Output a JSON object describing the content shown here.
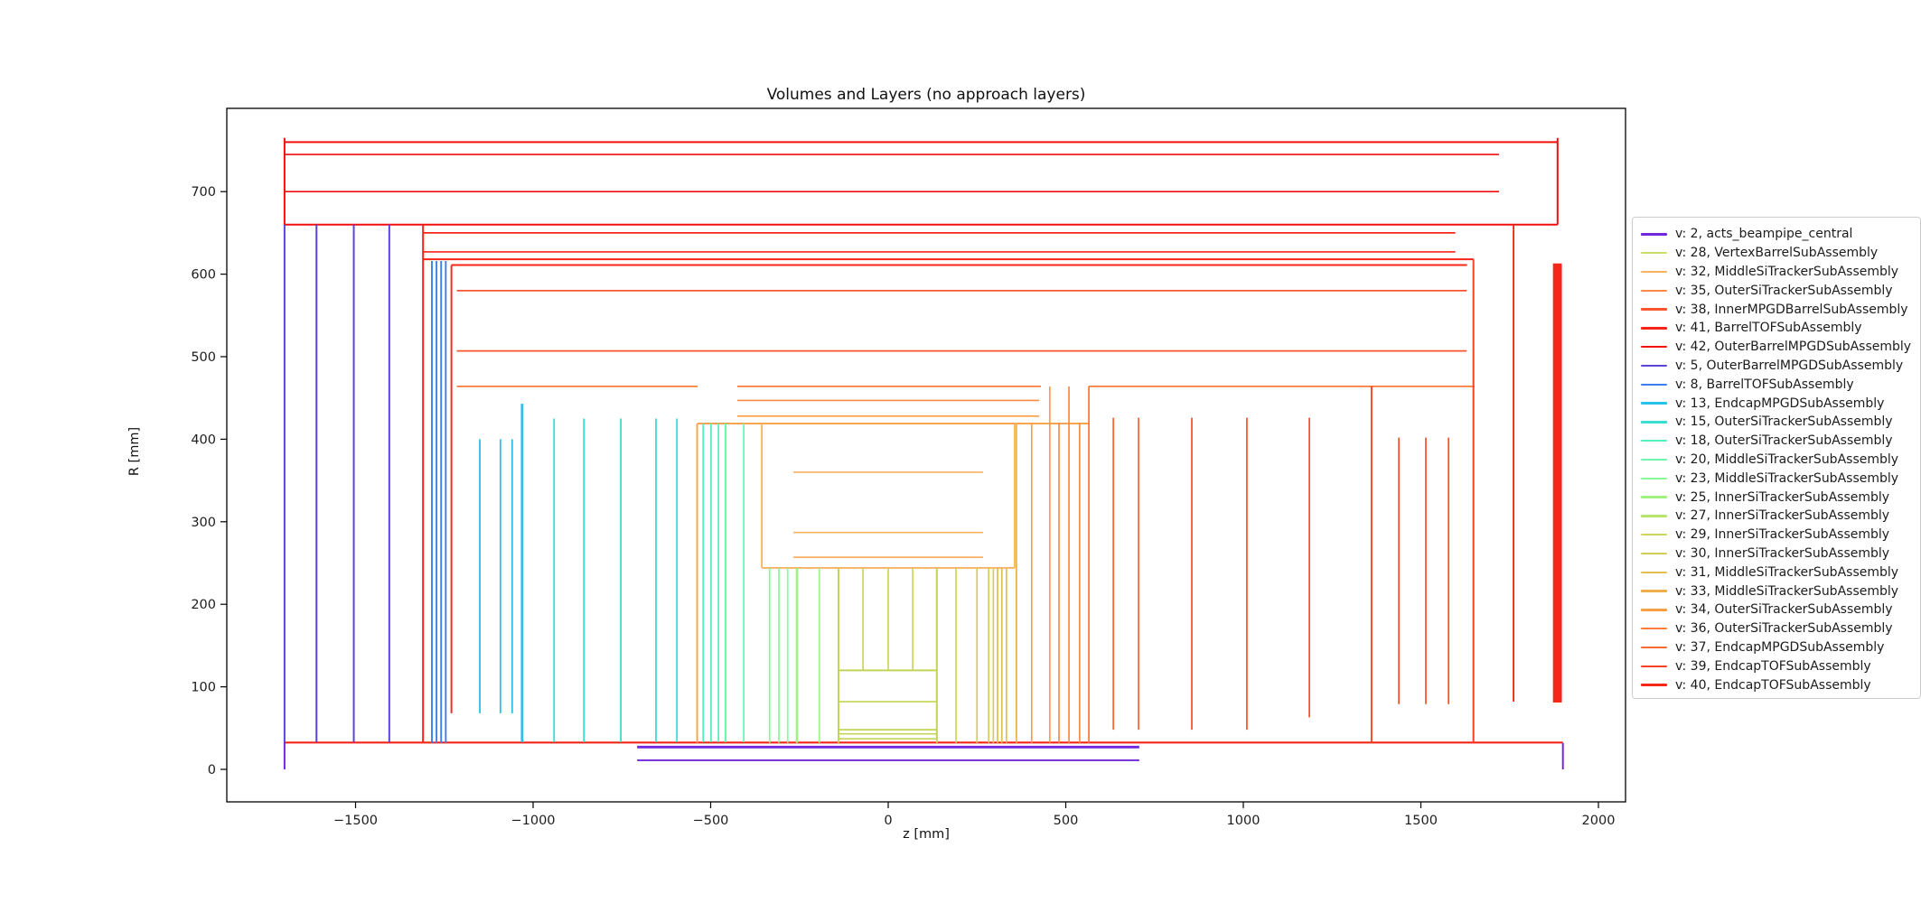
{
  "figure": {
    "title": "Volumes and Layers (no approach layers)",
    "xlabel": "z [mm]",
    "ylabel": "R [mm]",
    "background": "#ffffff",
    "spine_color": "#000000",
    "tick_label_color": "#1c1c1c"
  },
  "chart_data": {
    "type": "line",
    "description": "Detector tracker geometry cross-section: volume boundaries and layers drawn as horizontal (barrel) and vertical (disk) line segments in z-R plane",
    "title": "Volumes and Layers (no approach layers)",
    "xlabel": "z [mm]",
    "ylabel": "R [mm]",
    "xlim": [
      -1862,
      2076
    ],
    "ylim": [
      -40,
      801
    ],
    "x_ticks": [
      -1500,
      -1000,
      -500,
      0,
      500,
      1000,
      1500,
      2000
    ],
    "x_tick_labels": [
      "−1500",
      "−1000",
      "−500",
      "0",
      "500",
      "1000",
      "1500",
      "2000"
    ],
    "y_ticks": [
      0,
      100,
      200,
      300,
      400,
      500,
      600,
      700
    ],
    "y_tick_labels": [
      "0",
      "100",
      "200",
      "300",
      "400",
      "500",
      "600",
      "700"
    ],
    "grid": false,
    "legend_position": "right, outside axes, vertically centered, clipped by image edge",
    "h_segments": [
      {
        "name": "outer-mpgd-top",
        "r": 760,
        "z1": -1700,
        "z2": 1885,
        "color": "#f20f0e",
        "w": 2.0
      },
      {
        "name": "outer-mpgd-layer2",
        "r": 745,
        "z1": -1700,
        "z2": 1720,
        "color": "#f20f0e",
        "w": 1.7
      },
      {
        "name": "outer-mpgd-layer1",
        "r": 700,
        "z1": -1700,
        "z2": 1720,
        "color": "#f20f0e",
        "w": 1.7
      },
      {
        "name": "outer-mpgd-bottom",
        "r": 660,
        "z1": -1700,
        "z2": 1885,
        "color": "#f20f0e",
        "w": 2.0
      },
      {
        "name": "barrel-tof-top",
        "r": 650,
        "z1": -1310,
        "z2": 1597,
        "color": "#f7241a",
        "w": 1.7
      },
      {
        "name": "barrel-tof-layer",
        "r": 627,
        "z1": -1310,
        "z2": 1597,
        "color": "#f7241a",
        "w": 1.7
      },
      {
        "name": "barrel-tof-inner",
        "r": 618,
        "z1": -1310,
        "z2": 1648,
        "color": "#f7241a",
        "w": 2.0
      },
      {
        "name": "barrel-tof-bottom",
        "r": 611,
        "z1": -1230,
        "z2": 1630,
        "color": "#f7241a",
        "w": 2.0
      },
      {
        "name": "inner-mpgd-layer",
        "r": 580,
        "z1": -1215,
        "z2": 1629,
        "color": "#fb5530",
        "w": 1.7
      },
      {
        "name": "inner-mpgd-layer2",
        "r": 507,
        "z1": -1215,
        "z2": 1629,
        "color": "#fb5530",
        "w": 1.7
      },
      {
        "name": "outer-si-top-a",
        "r": 464,
        "z1": -1215,
        "z2": -537,
        "color": "#fb7b3b",
        "w": 1.7
      },
      {
        "name": "outer-si-top-b",
        "r": 464,
        "z1": -425,
        "z2": 430,
        "color": "#fb7b3b",
        "w": 1.7
      },
      {
        "name": "outer-si-top-c",
        "r": 464,
        "z1": 565,
        "z2": 1651,
        "color": "#fb7b3b",
        "w": 1.7
      },
      {
        "name": "outer-si-layer",
        "r": 447,
        "z1": -425,
        "z2": 425,
        "color": "#fb8b45",
        "w": 1.7
      },
      {
        "name": "outer-si-layer2",
        "r": 428,
        "z1": -425,
        "z2": 425,
        "color": "#f99e45",
        "w": 1.7
      },
      {
        "name": "outer-si-bottom",
        "r": 419,
        "z1": -537,
        "z2": 565,
        "color": "#f99e45",
        "w": 1.9
      },
      {
        "name": "middle-si-layer1",
        "r": 360,
        "z1": -267,
        "z2": 267,
        "color": "#f9b261",
        "w": 1.7
      },
      {
        "name": "middle-si-layer2",
        "r": 287,
        "z1": -267,
        "z2": 267,
        "color": "#f9b261",
        "w": 1.7
      },
      {
        "name": "middle-si-layer3",
        "r": 257,
        "z1": -267,
        "z2": 267,
        "color": "#f9b261",
        "w": 1.7
      },
      {
        "name": "middle-si-bottom",
        "r": 244,
        "z1": -356,
        "z2": 356,
        "color": "#f9b261",
        "w": 1.9
      },
      {
        "name": "vertex-top",
        "r": 120,
        "z1": -140,
        "z2": 137,
        "color": "#c3d456",
        "w": 2.0
      },
      {
        "name": "vertex-layer3",
        "r": 82,
        "z1": -140,
        "z2": 137,
        "color": "#c3d456",
        "w": 1.7
      },
      {
        "name": "vertex-layer2",
        "r": 48,
        "z1": -140,
        "z2": 137,
        "color": "#c3d456",
        "w": 1.7
      },
      {
        "name": "vertex-layer1",
        "r": 43,
        "z1": -140,
        "z2": 137,
        "color": "#c3d456",
        "w": 1.7
      },
      {
        "name": "vertex-layer0",
        "r": 37,
        "z1": -140,
        "z2": 137,
        "color": "#c3d456",
        "w": 1.7
      },
      {
        "name": "beampipe-outer-red",
        "r": 32.5,
        "z1": -1700,
        "z2": 1900,
        "color": "#f7241a",
        "w": 2.2
      },
      {
        "name": "beampipe-layer-outer",
        "r": 27,
        "z1": -707,
        "z2": 707,
        "color": "#7127dc",
        "w": 2.8
      },
      {
        "name": "beampipe-layer-inner",
        "r": 11,
        "z1": -707,
        "z2": 707,
        "color": "#7127dc",
        "w": 1.9
      }
    ],
    "v_segments": [
      {
        "name": "beampipe-left-edge",
        "z": -1700,
        "r1": 0,
        "r2": 33,
        "color": "#7127dc",
        "w": 2.0
      },
      {
        "name": "outer-mpgd-disk-n1",
        "z": -1700,
        "r1": 33,
        "r2": 660,
        "color": "#5a44da",
        "w": 2.0
      },
      {
        "name": "outer-mpgd-disk-n2",
        "z": -1610,
        "r1": 33,
        "r2": 660,
        "color": "#5a44da",
        "w": 2.0
      },
      {
        "name": "outer-mpgd-disk-n3",
        "z": -1505,
        "r1": 33,
        "r2": 660,
        "color": "#5a44da",
        "w": 2.0
      },
      {
        "name": "outer-mpgd-disk-n4",
        "z": -1405,
        "r1": 33,
        "r2": 660,
        "color": "#5a44da",
        "w": 2.0
      },
      {
        "name": "outer-box-left-edge",
        "z": -1700,
        "r1": 660,
        "r2": 765,
        "color": "#f20f0e",
        "w": 2.0
      },
      {
        "name": "outer-box-right-edge",
        "z": 1885,
        "r1": 660,
        "r2": 765,
        "color": "#f20f0e",
        "w": 2.0
      },
      {
        "name": "barrel-tof-left-wall",
        "z": -1310,
        "r1": 33,
        "r2": 660,
        "color": "#f7241a",
        "w": 2.0
      },
      {
        "name": "tof-disk-n1",
        "z": -1285,
        "r1": 32,
        "r2": 616,
        "color": "#3c7ef0",
        "w": 1.9
      },
      {
        "name": "tof-disk-n2",
        "z": -1272,
        "r1": 32,
        "r2": 616,
        "color": "#3c7ef0",
        "w": 1.9
      },
      {
        "name": "tof-disk-n3",
        "z": -1259,
        "r1": 32,
        "r2": 616,
        "color": "#3c7ef0",
        "w": 1.9
      },
      {
        "name": "tof-disk-n4",
        "z": -1246,
        "r1": 32,
        "r2": 616,
        "color": "#3c7ef0",
        "w": 1.9
      },
      {
        "name": "endcap-wall-n",
        "z": -1230,
        "r1": 68,
        "r2": 611,
        "color": "#f7241a",
        "w": 1.9
      },
      {
        "name": "mpgd-disk-n1",
        "z": -1150,
        "r1": 68,
        "r2": 400,
        "color": "#28c1e7",
        "w": 1.8
      },
      {
        "name": "mpgd-disk-n2",
        "z": -1092,
        "r1": 68,
        "r2": 400,
        "color": "#28c1e7",
        "w": 1.8
      },
      {
        "name": "mpgd-disk-n3",
        "z": -1059,
        "r1": 68,
        "r2": 400,
        "color": "#28c1e7",
        "w": 1.8
      },
      {
        "name": "mpgd-disk-n4",
        "z": -1031,
        "r1": 33,
        "r2": 443,
        "color": "#28c1e7",
        "w": 2.8
      },
      {
        "name": "outer-si-disk-n1",
        "z": -941,
        "r1": 33,
        "r2": 425,
        "color": "#3cdcd1",
        "w": 1.8
      },
      {
        "name": "outer-si-disk-n2",
        "z": -857,
        "r1": 33,
        "r2": 425,
        "color": "#3cdcd1",
        "w": 1.8
      },
      {
        "name": "outer-si-disk-n3",
        "z": -753,
        "r1": 33,
        "r2": 425,
        "color": "#3cdcd1",
        "w": 1.8
      },
      {
        "name": "outer-si-disk-n4",
        "z": -654,
        "r1": 33,
        "r2": 425,
        "color": "#3cdcd1",
        "w": 1.8
      },
      {
        "name": "outer-si-disk-n5",
        "z": -595,
        "r1": 33,
        "r2": 425,
        "color": "#3cdcd1",
        "w": 1.8
      },
      {
        "name": "outer-si-left-wall",
        "z": -538,
        "r1": 32,
        "r2": 419,
        "color": "#f99e45",
        "w": 1.8
      },
      {
        "name": "si-disk-n6",
        "z": -521,
        "r1": 33,
        "r2": 419,
        "color": "#55efc0",
        "w": 1.8
      },
      {
        "name": "si-disk-n7",
        "z": -499,
        "r1": 33,
        "r2": 419,
        "color": "#55efc0",
        "w": 1.8
      },
      {
        "name": "si-disk-n8",
        "z": -478,
        "r1": 33,
        "r2": 419,
        "color": "#55efc0",
        "w": 1.8
      },
      {
        "name": "si-disk-n9",
        "z": -458,
        "r1": 33,
        "r2": 419,
        "color": "#6ef7ac",
        "w": 2.2
      },
      {
        "name": "si-disk-n10",
        "z": -407,
        "r1": 33,
        "r2": 419,
        "color": "#6ef7ac",
        "w": 1.8
      },
      {
        "name": "middle-si-left-wall",
        "z": -356,
        "r1": 244,
        "r2": 419,
        "color": "#f9b261",
        "w": 1.8
      },
      {
        "name": "inner-disk-n1",
        "z": -334,
        "r1": 32,
        "r2": 244,
        "color": "#87f996",
        "w": 1.7
      },
      {
        "name": "inner-disk-n2",
        "z": -308,
        "r1": 32,
        "r2": 244,
        "color": "#87f996",
        "w": 1.7
      },
      {
        "name": "inner-disk-n3",
        "z": -283,
        "r1": 32,
        "r2": 244,
        "color": "#87f996",
        "w": 1.7
      },
      {
        "name": "inner-disk-n4",
        "z": -257,
        "r1": 32,
        "r2": 244,
        "color": "#9ff180",
        "w": 2.6
      },
      {
        "name": "inner-disk-n5",
        "z": -194,
        "r1": 32,
        "r2": 244,
        "color": "#9ff180",
        "w": 1.7
      },
      {
        "name": "vertex-left-wall",
        "z": -140,
        "r1": 32,
        "r2": 244,
        "color": "#c3d456",
        "w": 2.0
      },
      {
        "name": "vertex-right-wall",
        "z": 137,
        "r1": 32,
        "r2": 244,
        "color": "#c3d456",
        "w": 2.0
      },
      {
        "name": "vertex-bound-n",
        "z": -71,
        "r1": 120,
        "r2": 244,
        "color": "#cdd45c",
        "w": 1.7
      },
      {
        "name": "vertex-bound-0",
        "z": 0,
        "r1": 120,
        "r2": 244,
        "color": "#cdd45c",
        "w": 1.7
      },
      {
        "name": "vertex-bound-p",
        "z": 69,
        "r1": 120,
        "r2": 244,
        "color": "#cdd45c",
        "w": 1.7
      },
      {
        "name": "inner-disk-p1",
        "z": 191,
        "r1": 32,
        "r2": 244,
        "color": "#cdd45c",
        "w": 1.7
      },
      {
        "name": "inner-disk-p2",
        "z": 250,
        "r1": 32,
        "r2": 244,
        "color": "#d5cb58",
        "w": 1.7
      },
      {
        "name": "inner-disk-p3",
        "z": 283,
        "r1": 32,
        "r2": 244,
        "color": "#d5cb58",
        "w": 1.7
      },
      {
        "name": "inner-disk-p4",
        "z": 296,
        "r1": 32,
        "r2": 244,
        "color": "#d5cb58",
        "w": 1.7
      },
      {
        "name": "inner-disk-p5",
        "z": 308,
        "r1": 32,
        "r2": 244,
        "color": "#e2bd51",
        "w": 1.7
      },
      {
        "name": "inner-disk-p6",
        "z": 320,
        "r1": 32,
        "r2": 244,
        "color": "#e2bd51",
        "w": 1.7
      },
      {
        "name": "inner-disk-p7",
        "z": 333,
        "r1": 32,
        "r2": 244,
        "color": "#e2bd51",
        "w": 1.7
      },
      {
        "name": "middle-si-right-wall",
        "z": 356,
        "r1": 244,
        "r2": 419,
        "color": "#f9b261",
        "w": 1.8
      },
      {
        "name": "mid-disk-p1",
        "z": 361,
        "r1": 32,
        "r2": 420,
        "color": "#eeae4a",
        "w": 1.7
      },
      {
        "name": "mid-disk-p2",
        "z": 404,
        "r1": 32,
        "r2": 420,
        "color": "#f99e45",
        "w": 1.7
      },
      {
        "name": "mid-disk-p3",
        "z": 455,
        "r1": 32,
        "r2": 464,
        "color": "#f99e45",
        "w": 1.7
      },
      {
        "name": "mid-disk-p4",
        "z": 481,
        "r1": 32,
        "r2": 420,
        "color": "#fb8b45",
        "w": 1.7
      },
      {
        "name": "mid-disk-p5",
        "z": 509,
        "r1": 32,
        "r2": 464,
        "color": "#fb8b45",
        "w": 1.7
      },
      {
        "name": "mid-disk-p6",
        "z": 539,
        "r1": 32,
        "r2": 420,
        "color": "#fb8b45",
        "w": 1.7
      },
      {
        "name": "outer-si-right-wall",
        "z": 565,
        "r1": 32,
        "r2": 464,
        "color": "#fb7b3b",
        "w": 1.8
      },
      {
        "name": "fwd-disk-p1",
        "z": 634,
        "r1": 48,
        "r2": 426,
        "color": "#fb6a34",
        "w": 1.8
      },
      {
        "name": "fwd-disk-p2",
        "z": 705,
        "r1": 48,
        "r2": 426,
        "color": "#fb6a34",
        "w": 1.8
      },
      {
        "name": "fwd-disk-p3",
        "z": 855,
        "r1": 48,
        "r2": 426,
        "color": "#fb5530",
        "w": 1.8
      },
      {
        "name": "fwd-disk-p4",
        "z": 1010,
        "r1": 48,
        "r2": 426,
        "color": "#fb5530",
        "w": 1.8
      },
      {
        "name": "fwd-disk-p5",
        "z": 1186,
        "r1": 63,
        "r2": 426,
        "color": "#fb5530",
        "w": 1.8
      },
      {
        "name": "fwd-wall-p1",
        "z": 1361,
        "r1": 32,
        "r2": 464,
        "color": "#f93f24",
        "w": 1.9
      },
      {
        "name": "tof-disk-p1",
        "z": 1438,
        "r1": 79,
        "r2": 402,
        "color": "#fb5530",
        "w": 1.8
      },
      {
        "name": "tof-disk-p2",
        "z": 1514,
        "r1": 79,
        "r2": 402,
        "color": "#fb5530",
        "w": 1.8
      },
      {
        "name": "tof-disk-p3",
        "z": 1578,
        "r1": 79,
        "r2": 402,
        "color": "#fb5530",
        "w": 1.8
      },
      {
        "name": "fwd-wall-p2",
        "z": 1648,
        "r1": 32,
        "r2": 618,
        "color": "#f93f24",
        "w": 2.0
      },
      {
        "name": "fwd-wall-p3",
        "z": 1761,
        "r1": 82,
        "r2": 660,
        "color": "#f62718",
        "w": 1.9
      },
      {
        "name": "beampipe-right-edge",
        "z": 1900,
        "r1": 0,
        "r2": 32,
        "color": "#7127dc",
        "w": 2.0
      }
    ],
    "rects": [
      {
        "name": "endcap-tof-disk-thick",
        "z1": 1872,
        "z2": 1897,
        "r1": 81,
        "r2": 613,
        "color": "#f62718"
      }
    ]
  },
  "legend": {
    "entries": [
      {
        "label": "v: 2, acts_beampipe_central",
        "color": "#7127dc"
      },
      {
        "label": "v: 28, VertexBarrelSubAssembly",
        "color": "#c6dd6a"
      },
      {
        "label": "v: 32, MiddleSiTrackerSubAssembly",
        "color": "#f9b261"
      },
      {
        "label": "v: 35, OuterSiTrackerSubAssembly",
        "color": "#fb8b45"
      },
      {
        "label": "v: 38, InnerMPGDBarrelSubAssembly",
        "color": "#fb5530"
      },
      {
        "label": "v: 41, BarrelTOFSubAssembly",
        "color": "#f7241a"
      },
      {
        "label": "v: 42, OuterBarrelMPGDSubAssembly",
        "color": "#f20f0e"
      },
      {
        "label": "v: 5, OuterBarrelMPGDSubAssembly",
        "color": "#5a44da"
      },
      {
        "label": "v: 8, BarrelTOFSubAssembly",
        "color": "#3c7ef0"
      },
      {
        "label": "v: 13, EndcapMPGDSubAssembly",
        "color": "#28c1e7"
      },
      {
        "label": "v: 15, OuterSiTrackerSubAssembly",
        "color": "#3cdcd1"
      },
      {
        "label": "v: 18, OuterSiTrackerSubAssembly",
        "color": "#55efc0"
      },
      {
        "label": "v: 20, MiddleSiTrackerSubAssembly",
        "color": "#6ef7ac"
      },
      {
        "label": "v: 23, MiddleSiTrackerSubAssembly",
        "color": "#87f996"
      },
      {
        "label": "v: 25, InnerSiTrackerSubAssembly",
        "color": "#9ff180"
      },
      {
        "label": "v: 27, InnerSiTrackerSubAssembly",
        "color": "#b6e46c"
      },
      {
        "label": "v: 29, InnerSiTrackerSubAssembly",
        "color": "#cdd45c"
      },
      {
        "label": "v: 30, InnerSiTrackerSubAssembly",
        "color": "#d5cb58"
      },
      {
        "label": "v: 31, MiddleSiTrackerSubAssembly",
        "color": "#e2bd51"
      },
      {
        "label": "v: 33, MiddleSiTrackerSubAssembly",
        "color": "#eeae4a"
      },
      {
        "label": "v: 34, OuterSiTrackerSubAssembly",
        "color": "#f99e45"
      },
      {
        "label": "v: 36, OuterSiTrackerSubAssembly",
        "color": "#fb7b3b"
      },
      {
        "label": "v: 37, EndcapMPGDSubAssembly",
        "color": "#fb6a34"
      },
      {
        "label": "v: 39, EndcapTOFSubAssembly",
        "color": "#f93f24"
      },
      {
        "label": "v: 40, EndcapTOFSubAssembly",
        "color": "#f62718"
      }
    ]
  }
}
